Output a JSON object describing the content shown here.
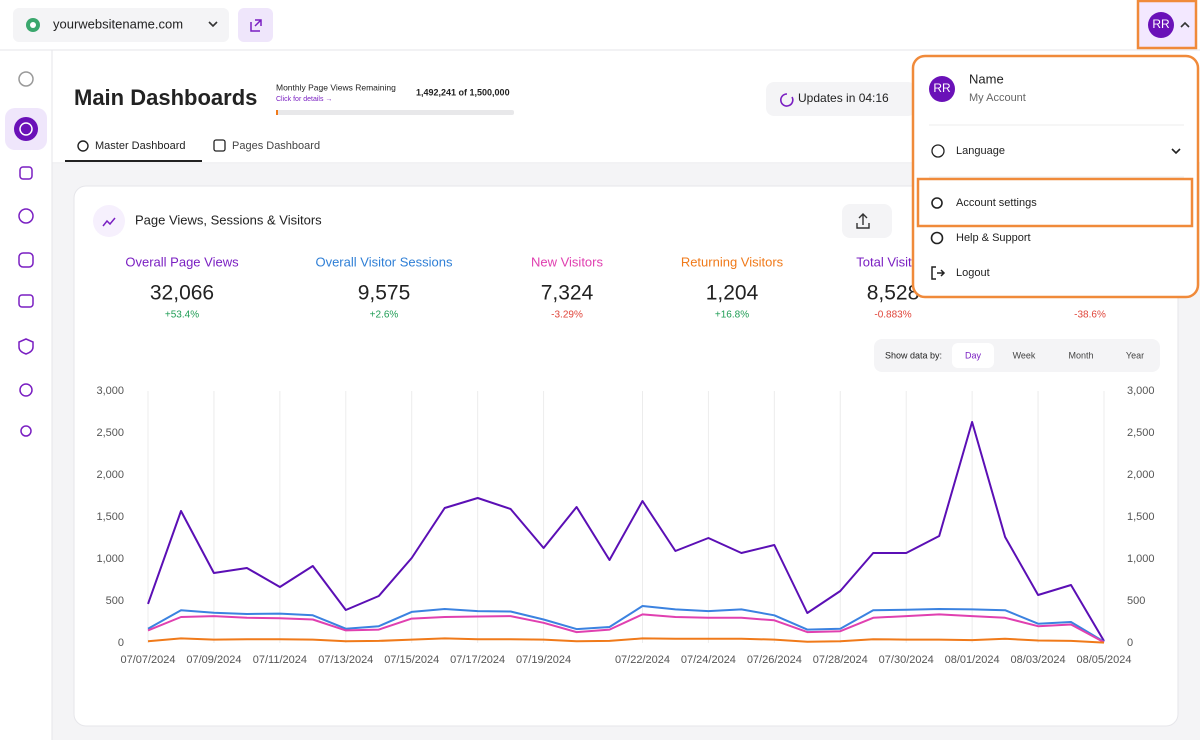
{
  "topbar": {
    "site": "yourwebsitename.com",
    "avatar": "RR"
  },
  "header": {
    "title": "Main Dashboards",
    "quota_label": "Monthly Page Views Remaining",
    "quota_link": "Click for details →",
    "quota_value": "1,492,241 of 1,500,000",
    "updates": "Updates in 04:16"
  },
  "tabs": [
    "Master Dashboard",
    "Pages Dashboard"
  ],
  "card": {
    "title": "Page Views, Sessions & Visitors",
    "stats": [
      {
        "label": "Overall Page Views",
        "value": "32,066",
        "change": "+53.4%",
        "color": "#7a1fc2",
        "change_color": "#1f9d55"
      },
      {
        "label": "Overall Visitor Sessions",
        "value": "9,575",
        "change": "+2.6%",
        "color": "#2f7fd6",
        "change_color": "#1f9d55"
      },
      {
        "label": "New Visitors",
        "value": "7,324",
        "change": "-3.29%",
        "color": "#e040b0",
        "change_color": "#e0453a"
      },
      {
        "label": "Returning Visitors",
        "value": "1,204",
        "change": "+16.8%",
        "color": "#f07a1a",
        "change_color": "#1f9d55"
      },
      {
        "label": "Total Visitors",
        "value": "8,528",
        "change": "-0.883%",
        "color": "#7a1fc2",
        "change_color": "#e0453a"
      },
      {
        "change": "-38.6%",
        "change_color": "#e0453a"
      }
    ],
    "show_by_label": "Show data by:",
    "periods": [
      "Day",
      "Week",
      "Month",
      "Year"
    ]
  },
  "menu": {
    "avatar": "RR",
    "name": "Name",
    "sub": "My Account",
    "items": [
      "Language",
      "Account settings",
      "Help & Support",
      "Logout"
    ]
  },
  "chart_data": {
    "type": "line",
    "categories": [
      "07/07/2024",
      null,
      "07/09/2024",
      null,
      "07/11/2024",
      null,
      "07/13/2024",
      null,
      "07/15/2024",
      null,
      "07/17/2024",
      null,
      "07/19/2024",
      null,
      null,
      "07/22/2024",
      null,
      "07/24/2024",
      null,
      "07/26/2024",
      null,
      "07/28/2024",
      null,
      "07/30/2024",
      null,
      "08/01/2024",
      null,
      "08/03/2024",
      null,
      "08/05/2024"
    ],
    "series": [
      {
        "name": "Overall Page Views",
        "color": "#5b0fb5",
        "values": [
          465,
          1571,
          833,
          893,
          667,
          917,
          393,
          560,
          1012,
          1607,
          1726,
          1595,
          1131,
          1619,
          988,
          1690,
          1095,
          1250,
          1071,
          1167,
          357,
          619,
          1071,
          1071,
          1274,
          2631,
          1262,
          571,
          690,
          24
        ]
      },
      {
        "name": "Overall Visitor Sessions",
        "color": "#3b82e0",
        "values": [
          170,
          390,
          360,
          345,
          350,
          330,
          170,
          200,
          370,
          405,
          380,
          375,
          280,
          165,
          190,
          440,
          400,
          380,
          400,
          330,
          160,
          170,
          390,
          395,
          405,
          400,
          390,
          230,
          250,
          15
        ]
      },
      {
        "name": "New Visitors",
        "color": "#e040b0",
        "values": [
          150,
          310,
          320,
          300,
          295,
          280,
          150,
          160,
          290,
          310,
          315,
          320,
          240,
          130,
          160,
          340,
          310,
          300,
          300,
          270,
          130,
          140,
          300,
          320,
          340,
          320,
          300,
          200,
          220,
          10
        ]
      },
      {
        "name": "Returning Visitors",
        "color": "#f07a1a",
        "values": [
          20,
          55,
          40,
          45,
          45,
          40,
          20,
          25,
          40,
          55,
          45,
          45,
          40,
          20,
          25,
          55,
          50,
          50,
          50,
          40,
          15,
          20,
          45,
          40,
          40,
          35,
          50,
          30,
          25,
          5
        ]
      }
    ],
    "ylim": [
      0,
      3000
    ],
    "yticks": [
      0,
      500,
      {
        "value": 1000,
        "label": "1,000"
      },
      {
        "value": 1500,
        "label": "1,500"
      },
      {
        "value": 2000,
        "label": "2,000"
      },
      {
        "value": 2500,
        "label": "2,500"
      },
      {
        "value": 3000,
        "label": "3,000"
      }
    ],
    "y2lim": [
      0,
      3000
    ],
    "y2ticks": [
      0,
      500,
      {
        "value": 1000,
        "label": "1,000"
      },
      {
        "value": 1500,
        "label": "1,500"
      },
      {
        "value": 2000,
        "label": "2,000"
      },
      {
        "value": 2500,
        "label": "2,500"
      },
      {
        "value": 3000,
        "label": "3,000"
      }
    ],
    "grid": true
  }
}
